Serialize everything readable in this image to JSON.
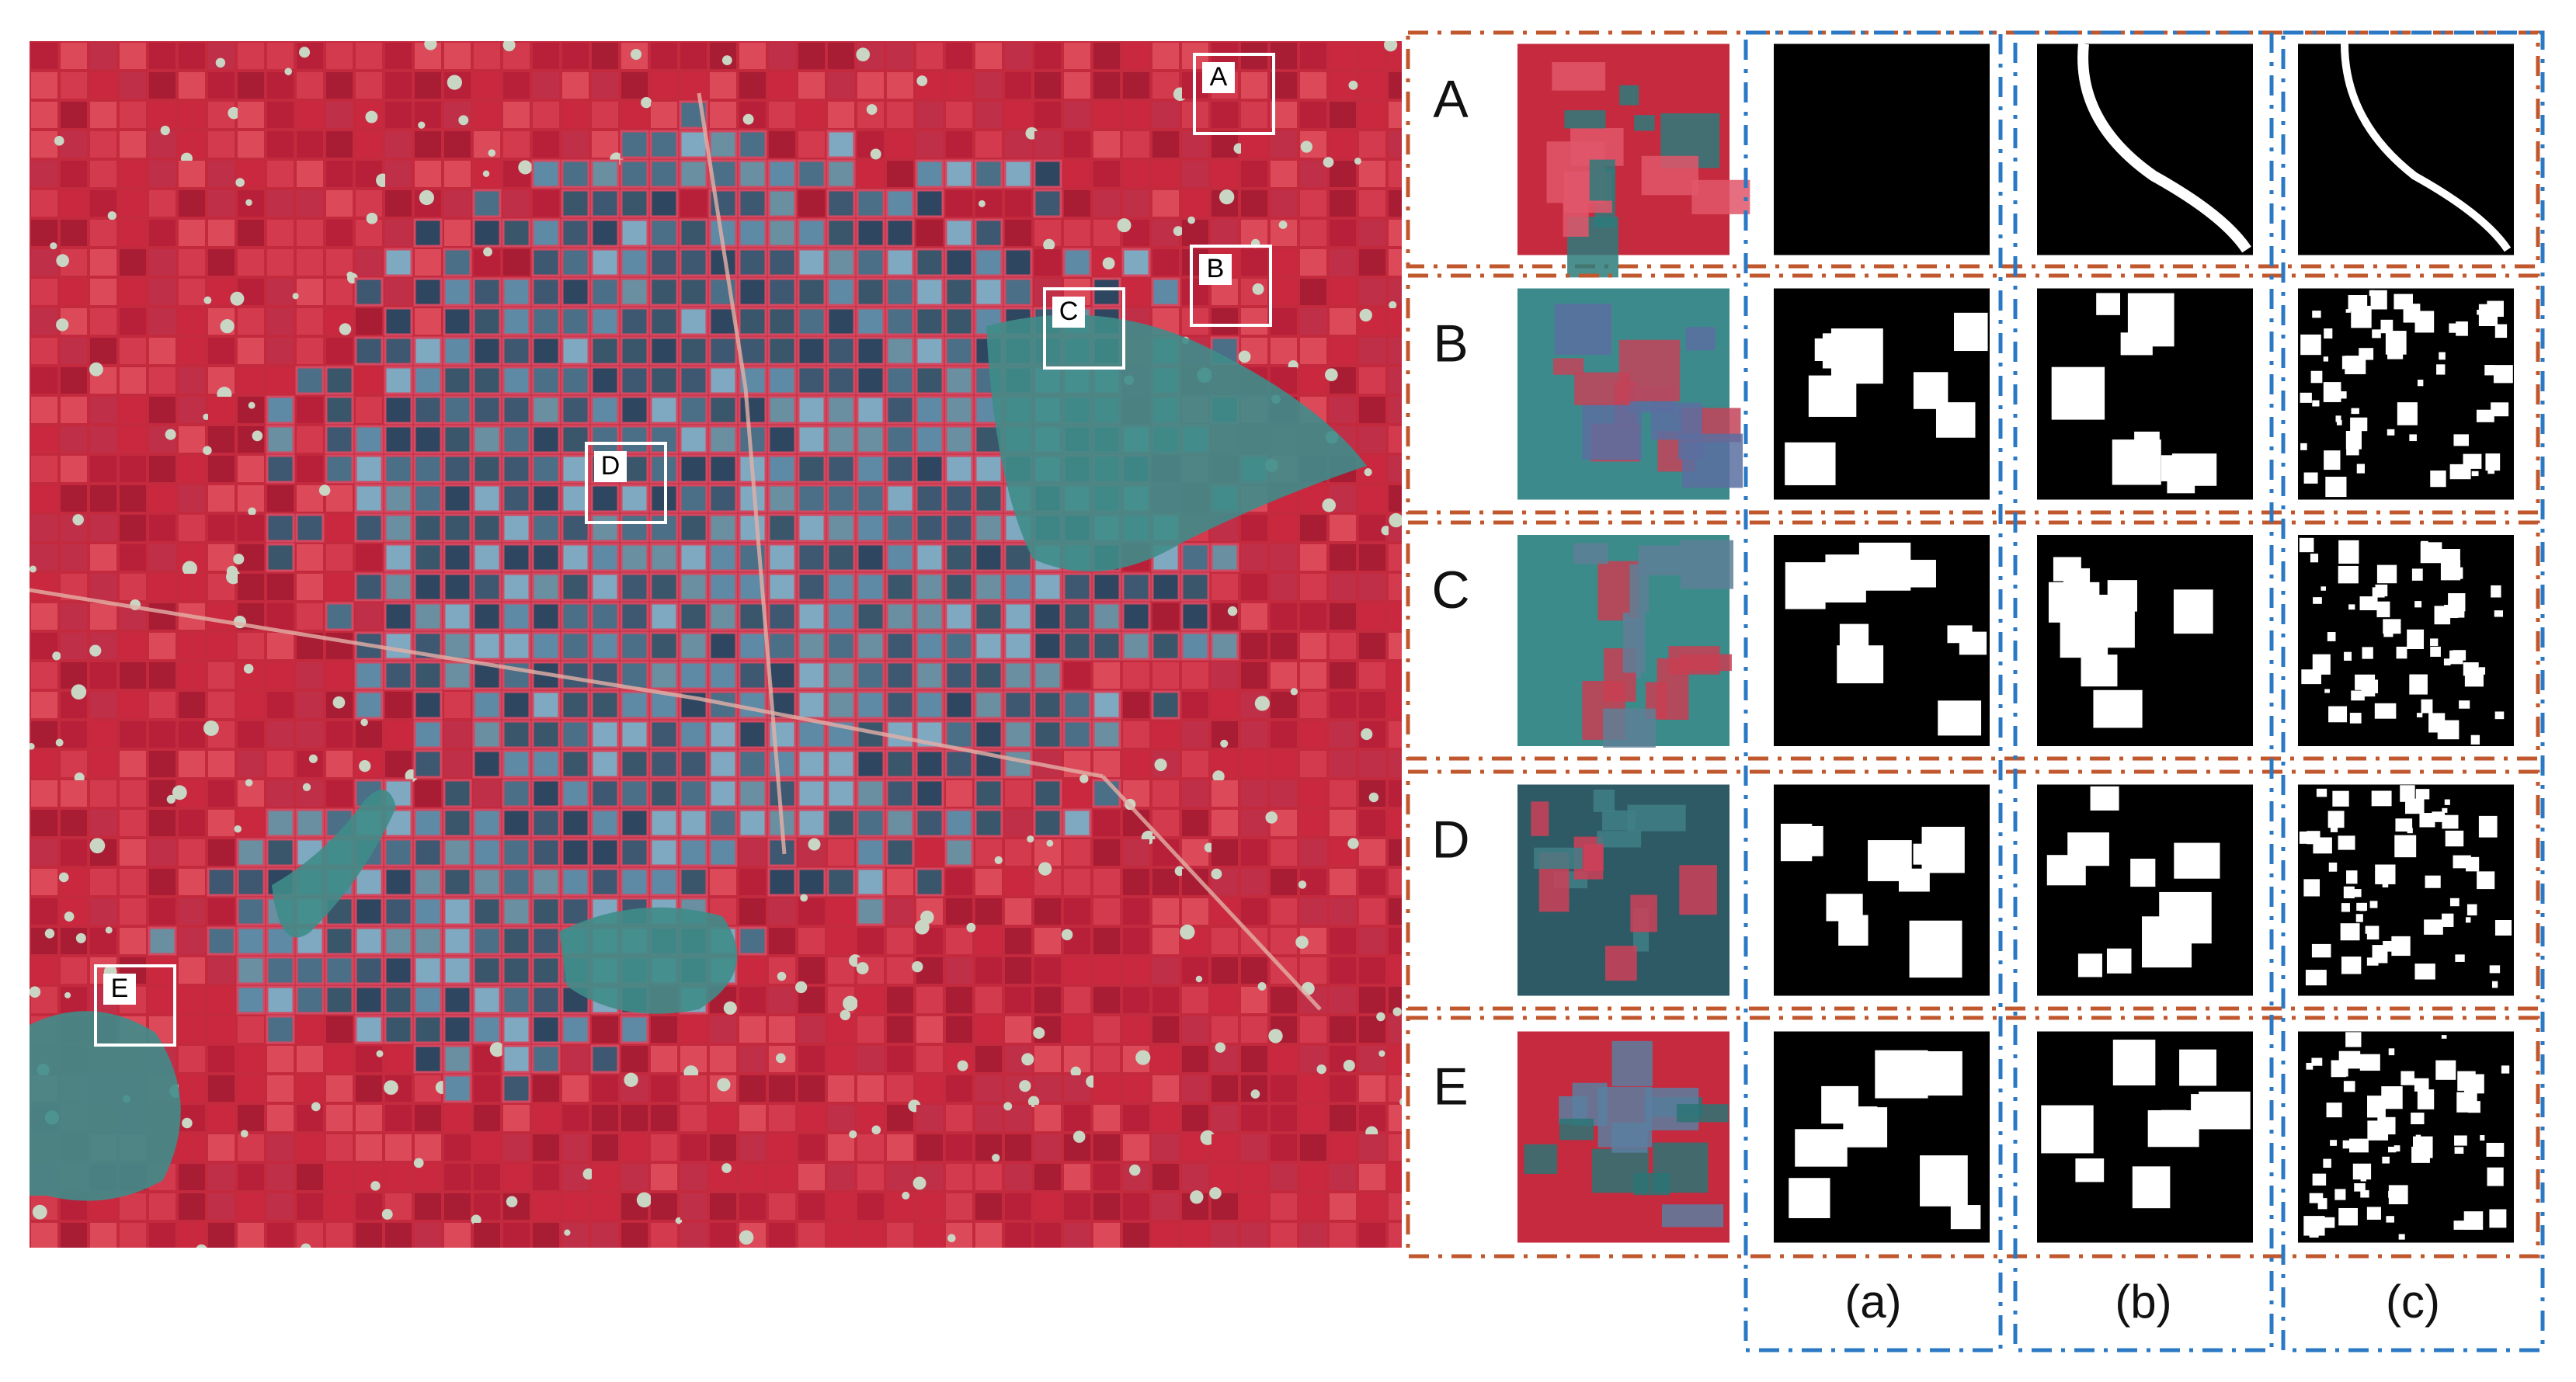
{
  "map": {
    "boxes": [
      "A",
      "B",
      "C",
      "D",
      "E"
    ]
  },
  "rows": [
    "A",
    "B",
    "C",
    "D",
    "E"
  ],
  "columns": [
    "(a)",
    "(b)",
    "(c)"
  ]
}
